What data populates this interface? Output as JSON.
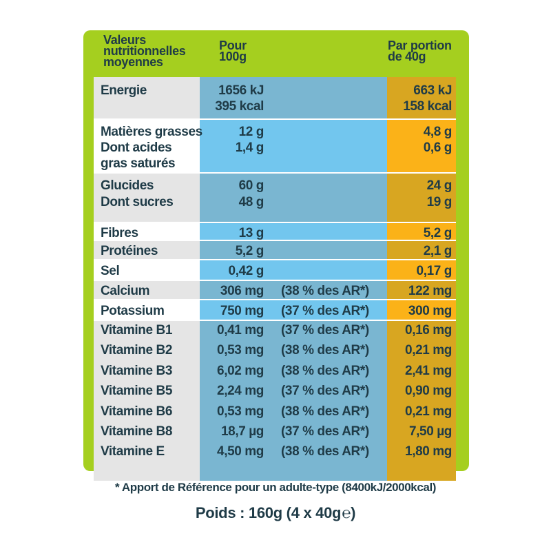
{
  "header": {
    "col1": [
      "Valeurs",
      "nutritionnelles",
      "moyennes"
    ],
    "col2": [
      "Pour",
      "100g"
    ],
    "col3": [
      "Par portion",
      "de 40g"
    ]
  },
  "rows": [
    {
      "lines": [
        {
          "name": "Energie",
          "v100": "1656 kJ",
          "ar": "",
          "vport": "663 kJ"
        },
        {
          "name": "",
          "v100": "395 kcal",
          "ar": "",
          "vport": "158 kcal"
        }
      ]
    },
    {
      "lines": [
        {
          "name": "Matières grasses",
          "v100": "12 g",
          "ar": "",
          "vport": "4,8 g"
        },
        {
          "name": "Dont acides",
          "v100": "1,4 g",
          "ar": "",
          "vport": "0,6 g"
        },
        {
          "name": "gras saturés",
          "v100": "",
          "ar": "",
          "vport": ""
        }
      ]
    },
    {
      "lines": [
        {
          "name": "Glucides",
          "v100": "60 g",
          "ar": "",
          "vport": "24 g"
        },
        {
          "name": "Dont sucres",
          "v100": "48 g",
          "ar": "",
          "vport": "19 g"
        }
      ]
    },
    {
      "lines": [
        {
          "name": "Fibres",
          "v100": "13 g",
          "ar": "",
          "vport": "5,2 g"
        }
      ]
    },
    {
      "lines": [
        {
          "name": "Protéines",
          "v100": "5,2 g",
          "ar": "",
          "vport": "2,1 g"
        }
      ]
    },
    {
      "lines": [
        {
          "name": "Sel",
          "v100": "0,42 g",
          "ar": "",
          "vport": "0,17 g"
        }
      ]
    },
    {
      "lines": [
        {
          "name": "Calcium",
          "v100": "306 mg",
          "ar": "(38 % des AR*)",
          "vport": "122 mg"
        }
      ]
    },
    {
      "lines": [
        {
          "name": "Potassium",
          "v100": "750 mg",
          "ar": "(37 % des AR*)",
          "vport": "300 mg"
        }
      ]
    },
    {
      "lines": [
        {
          "name": "Vitamine B1",
          "v100": "0,41 mg",
          "ar": "(37 % des AR*)",
          "vport": "0,16 mg"
        },
        {
          "name": "Vitamine B2",
          "v100": "0,53 mg",
          "ar": "(38 % des AR*)",
          "vport": "0,21 mg"
        },
        {
          "name": "Vitamine B3",
          "v100": "6,02 mg",
          "ar": "(38 % des AR*)",
          "vport": "2,41 mg"
        },
        {
          "name": "Vitamine B5",
          "v100": "2,24 mg",
          "ar": "(37 % des AR*)",
          "vport": "0,90 mg"
        },
        {
          "name": "Vitamine B6",
          "v100": "0,53 mg",
          "ar": "(38 % des AR*)",
          "vport": "0,21 mg"
        },
        {
          "name": "Vitamine B8",
          "v100": "18,7 µg",
          "ar": "(37 % des AR*)",
          "vport": "7,50 µg"
        },
        {
          "name": "Vitamine E",
          "v100": "4,50 mg",
          "ar": "(38 % des AR*)",
          "vport": "1,80 mg"
        }
      ]
    }
  ],
  "footnote": "* Apport de Référence pour un adulte-type (8400kJ/2000kcal)",
  "weight": "Poids : 160g (4 x 40g",
  "weight_close": ")",
  "estimated_sign": "℮"
}
